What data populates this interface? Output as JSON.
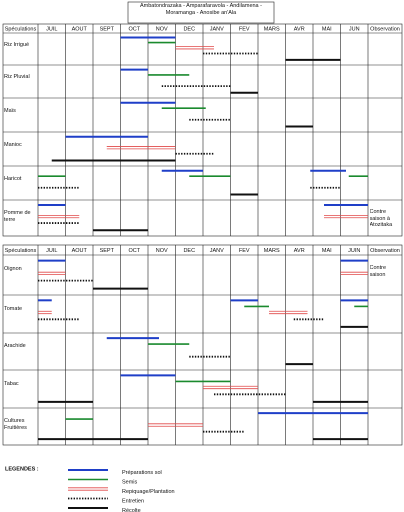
{
  "header": {
    "title": "Ambatondrazaka - Amparafaravola - Andilamena - Moramanga - Anosibe an'Ala"
  },
  "tables": [
    {
      "columns": [
        "Spéculations",
        "JUIL",
        "AOUT",
        "SEPT",
        "OCT",
        "NOV",
        "DEC",
        "JANV",
        "FEV",
        "MARS",
        "AVR",
        "MAI",
        "JUN",
        "Observation"
      ],
      "rows": [
        {
          "label": "Riz Irrigué",
          "observation": null,
          "periods": [
            [
              [
                3,
                5
              ]
            ],
            [
              [
                4,
                5
              ]
            ],
            [
              [
                5,
                6.4
              ]
            ],
            [
              [
                6,
                8
              ]
            ],
            [
              [
                9,
                11
              ]
            ]
          ]
        },
        {
          "label": "Riz Pluvial",
          "observation": null,
          "periods": [
            [
              [
                3,
                4
              ]
            ],
            [
              [
                4,
                5.5
              ]
            ],
            [],
            [
              [
                4.5,
                7
              ]
            ],
            [
              [
                7,
                8
              ]
            ]
          ]
        },
        {
          "label": "Maïs",
          "observation": null,
          "periods": [
            [
              [
                3,
                5
              ]
            ],
            [
              [
                4.5,
                6.1
              ]
            ],
            [],
            [
              [
                5.5,
                7
              ]
            ],
            [
              [
                9,
                10
              ]
            ]
          ]
        },
        {
          "label": "Manioc",
          "observation": null,
          "periods": [
            [
              [
                1,
                4
              ]
            ],
            [],
            [
              [
                2.5,
                5
              ]
            ],
            [
              [
                5,
                6.4
              ]
            ],
            [
              [
                0.5,
                5
              ]
            ]
          ]
        },
        {
          "label": "Haricot",
          "observation": null,
          "periods": [
            [
              [
                4.5,
                6
              ],
              [
                9.9,
                11.2
              ]
            ],
            [
              [
                0,
                1
              ],
              [
                5.5,
                7
              ],
              [
                11.3,
                12
              ]
            ],
            [],
            [
              [
                0,
                1.5
              ],
              [
                9.9,
                11
              ]
            ],
            [
              [
                7,
                8
              ]
            ]
          ]
        },
        {
          "label": "Pomme de terre",
          "observation": "Contre saison à Atozitaka",
          "periods": [
            [
              [
                0,
                1
              ],
              [
                10.4,
                12
              ]
            ],
            [],
            [
              [
                0,
                1.5
              ],
              [
                10.4,
                12
              ]
            ],
            [
              [
                0,
                1.5
              ]
            ],
            [
              [
                2,
                4
              ]
            ]
          ]
        }
      ]
    },
    {
      "columns": [
        "Spéculations",
        "JUIL",
        "AOUT",
        "SEPT",
        "OCT",
        "NOV",
        "DEC",
        "JANV",
        "FEV",
        "MARS",
        "AVR",
        "MAI",
        "JUIN",
        "Observation"
      ],
      "rows": [
        {
          "label": "Oignon",
          "observation": "Contre saison",
          "periods": [
            [
              [
                0,
                1
              ],
              [
                11,
                12
              ]
            ],
            [],
            [
              [
                0,
                1
              ],
              [
                11,
                12
              ]
            ],
            [
              [
                0,
                2
              ]
            ],
            [
              [
                2,
                4
              ]
            ]
          ]
        },
        {
          "label": "Tomate",
          "observation": null,
          "periods": [
            [
              [
                0,
                0.5
              ],
              [
                7,
                8
              ],
              [
                11,
                12
              ]
            ],
            [
              [
                7.5,
                8.4
              ],
              [
                11.5,
                12
              ]
            ],
            [
              [
                0,
                0.5
              ],
              [
                8.4,
                9.8
              ]
            ],
            [
              [
                0,
                1.5
              ],
              [
                9.3,
                10.4
              ]
            ],
            [
              [
                11,
                12
              ]
            ]
          ]
        },
        {
          "label": "Arachide",
          "observation": null,
          "periods": [
            [
              [
                2.5,
                4.4
              ]
            ],
            [
              [
                4,
                5.5
              ]
            ],
            [],
            [
              [
                5.5,
                7
              ]
            ],
            [
              [
                9,
                10
              ]
            ]
          ]
        },
        {
          "label": "Tabac",
          "observation": null,
          "periods": [
            [
              [
                3,
                5
              ]
            ],
            [
              [
                5,
                7
              ]
            ],
            [
              [
                6,
                8
              ]
            ],
            [
              [
                6.4,
                9
              ]
            ],
            [
              [
                0,
                2
              ],
              [
                10,
                12
              ]
            ]
          ]
        },
        {
          "label": "Cultures Fruitières",
          "observation": null,
          "periods": [
            [
              [
                8,
                12
              ]
            ],
            [
              [
                1,
                2
              ]
            ],
            [
              [
                4,
                6
              ]
            ],
            [
              [
                6,
                7.5
              ]
            ],
            [
              [
                0,
                4
              ],
              [
                10,
                12
              ]
            ]
          ]
        }
      ]
    }
  ],
  "legend": {
    "title": "LEGENDES :",
    "items": [
      "Préparations sol",
      "Semis",
      "Repiquage/Plantation",
      "Entretien",
      "Récolte"
    ]
  }
}
